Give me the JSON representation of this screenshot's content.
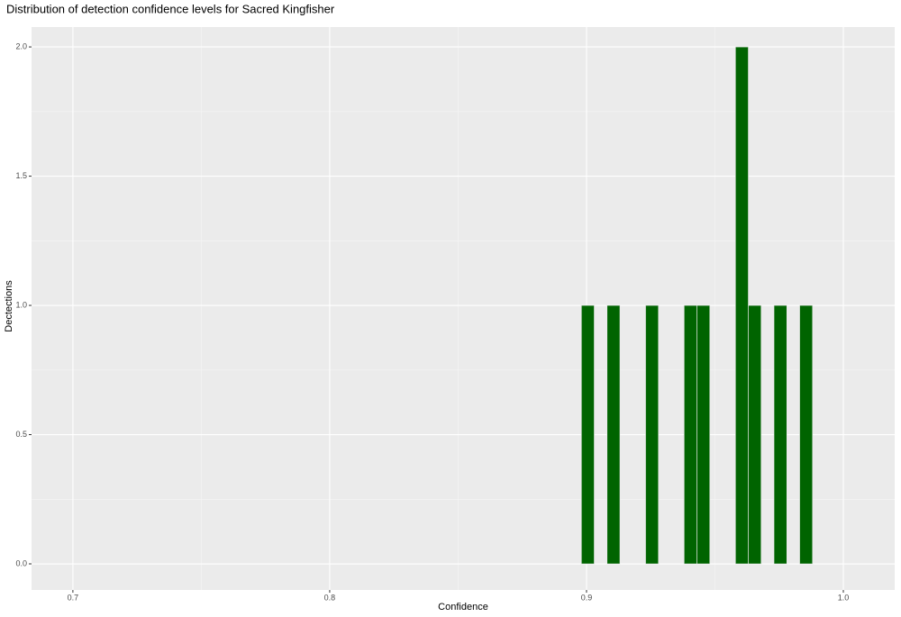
{
  "chart_data": {
    "type": "histogram",
    "title": "Distribution of detection confidence levels for Sacred Kingfisher",
    "x_label": "Confidence",
    "y_label": "Dectections",
    "bins": [
      0.898,
      0.903,
      0.908,
      0.913,
      0.918,
      0.923,
      0.928,
      0.933,
      0.938,
      0.943,
      0.948,
      0.953,
      0.958,
      0.963,
      0.968,
      0.973,
      0.978,
      0.983,
      0.988
    ],
    "values": [
      1,
      0,
      1,
      0,
      0,
      1,
      0,
      0,
      1,
      1,
      0,
      0,
      2,
      1,
      0,
      1,
      0,
      1
    ],
    "color": "#006400",
    "xlim": [
      0.6839,
      1.02
    ],
    "ylim": [
      -0.101,
      2.077
    ],
    "xticks": [
      0.7,
      0.8,
      0.9,
      {
        "value": 1,
        "label": "1.0"
      }
    ],
    "yticks": [
      {
        "value": 0,
        "label": "0.0"
      },
      0.5,
      {
        "value": 1,
        "label": "1.0"
      },
      1.5,
      {
        "value": 2,
        "label": "2.0"
      }
    ],
    "grid": true
  }
}
